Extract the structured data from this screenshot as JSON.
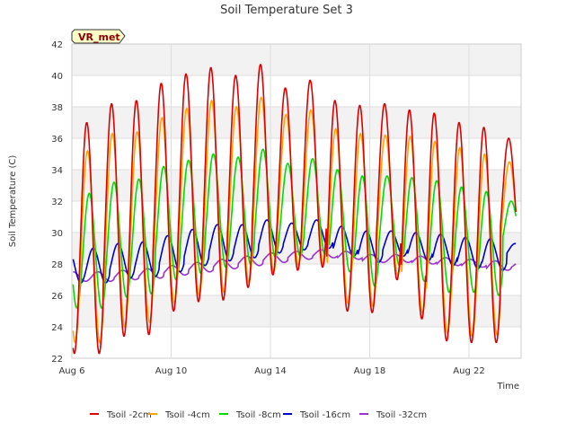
{
  "chart_data": {
    "type": "line",
    "title": "Soil Temperature Set 3",
    "xlabel": "Time",
    "ylabel": "Soil Temperature (C)",
    "site_badge": "VR_met",
    "x_ticks": [
      "Aug 6",
      "Aug 10",
      "Aug 14",
      "Aug 18",
      "Aug 22"
    ],
    "x_tick_days": [
      6,
      10,
      14,
      18,
      22
    ],
    "xlim": [
      6,
      24.1
    ],
    "ylim": [
      22,
      42
    ],
    "y_ticks": [
      22,
      24,
      26,
      28,
      30,
      32,
      34,
      36,
      38,
      40,
      42
    ],
    "grid": true,
    "legend_position": "bottom",
    "series": [
      {
        "name": "Tsoil -2cm",
        "color": "#dd0000",
        "daily_min": [
          22.3,
          23.4,
          23.5,
          25.0,
          25.6,
          25.7,
          26.5,
          27.3,
          27.6,
          27.8,
          25.0,
          24.9,
          27.0,
          24.5,
          23.1,
          23.0,
          23.0,
          28.5
        ],
        "daily_max": [
          37.0,
          38.2,
          38.4,
          39.5,
          40.1,
          40.5,
          40.0,
          40.7,
          39.2,
          39.7,
          38.4,
          38.1,
          38.2,
          37.8,
          37.6,
          37.0,
          36.7,
          36.0
        ]
      },
      {
        "name": "Tsoil -4cm",
        "color": "#ffa500",
        "daily_min": [
          23.0,
          24.0,
          24.3,
          25.5,
          26.0,
          26.2,
          26.8,
          27.5,
          27.9,
          28.0,
          25.5,
          25.3,
          27.3,
          24.9,
          23.6,
          23.4,
          23.5,
          28.5
        ],
        "daily_max": [
          35.2,
          36.3,
          36.4,
          37.3,
          37.9,
          38.4,
          38.0,
          38.6,
          37.5,
          37.8,
          36.6,
          36.3,
          36.2,
          36.1,
          35.8,
          35.4,
          35.0,
          34.5
        ]
      },
      {
        "name": "Tsoil -8cm",
        "color": "#00dd00",
        "daily_min": [
          25.2,
          25.9,
          26.1,
          27.0,
          27.4,
          27.8,
          28.0,
          28.4,
          28.5,
          28.6,
          27.5,
          26.6,
          27.9,
          26.9,
          26.2,
          26.2,
          26.0,
          29.0
        ],
        "daily_max": [
          32.5,
          33.2,
          33.4,
          34.2,
          34.6,
          35.0,
          34.8,
          35.3,
          34.4,
          34.7,
          34.0,
          33.6,
          33.6,
          33.5,
          33.3,
          32.9,
          32.6,
          32.0
        ]
      },
      {
        "name": "Tsoil -16cm",
        "color": "#0000cc",
        "daily_min": [
          26.8,
          27.1,
          27.2,
          27.5,
          27.9,
          28.2,
          28.4,
          28.7,
          28.9,
          29.0,
          28.5,
          28.1,
          28.5,
          28.2,
          27.9,
          27.7,
          27.6,
          28.5
        ],
        "daily_max": [
          29.0,
          29.3,
          29.4,
          29.8,
          30.2,
          30.5,
          30.5,
          30.8,
          30.6,
          30.8,
          30.4,
          30.1,
          30.1,
          30.0,
          29.9,
          29.7,
          29.6,
          29.3
        ]
      },
      {
        "name": "Tsoil -32cm",
        "color": "#9933cc",
        "daily_min": [
          26.9,
          27.0,
          27.1,
          27.3,
          27.5,
          27.7,
          27.9,
          28.1,
          28.3,
          28.4,
          28.3,
          28.1,
          28.1,
          28.0,
          27.9,
          27.8,
          27.6,
          27.7
        ],
        "daily_max": [
          27.5,
          27.6,
          27.7,
          27.9,
          28.1,
          28.3,
          28.5,
          28.7,
          28.8,
          28.9,
          28.8,
          28.6,
          28.6,
          28.5,
          28.4,
          28.3,
          28.2,
          28.1
        ]
      }
    ]
  }
}
